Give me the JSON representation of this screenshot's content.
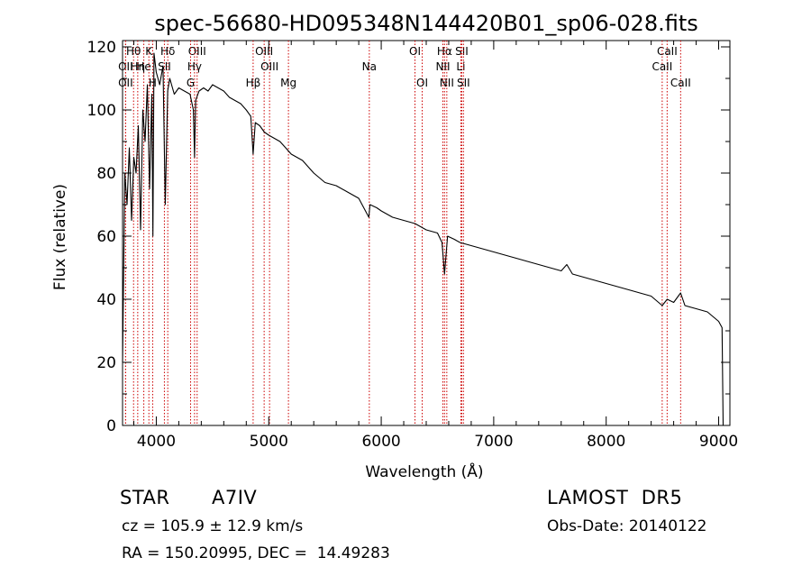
{
  "header": {
    "title": "spec-56680-HD095348N144420B01_sp06-028.fits"
  },
  "info": {
    "object_class": "STAR",
    "subclass": "A7IV",
    "cz": "cz = 105.9 ± 12.9 km/s",
    "coords": "RA = 150.20995, DEC =  14.49283",
    "survey": "LAMOST  DR5",
    "obs_date": "Obs-Date: 20140122"
  },
  "chart_data": {
    "type": "line",
    "title": "spec-56680-HD095348N144420B01_sp06-028.fits",
    "xlabel": "Wavelength (Å)",
    "ylabel": "Flux (relative)",
    "xlim": [
      3700,
      9100
    ],
    "ylim": [
      0,
      122
    ],
    "xticks": [
      4000,
      5000,
      6000,
      7000,
      8000,
      9000
    ],
    "yticks": [
      0,
      20,
      40,
      60,
      80,
      100,
      120
    ],
    "grid": false,
    "line_color": "#000000",
    "marker_color": "#cc0000",
    "series": [
      {
        "x": [
          3700,
          3720,
          3740,
          3760,
          3780,
          3800,
          3820,
          3840,
          3860,
          3880,
          3900,
          3920,
          3940,
          3960,
          3970,
          3980,
          4000,
          4030,
          4060,
          4080,
          4101,
          4120,
          4160,
          4200,
          4250,
          4300,
          4330,
          4340,
          4350,
          4380,
          4420,
          4460,
          4500,
          4550,
          4600,
          4650,
          4700,
          4750,
          4800,
          4840,
          4861,
          4880,
          4920,
          4960,
          5000,
          5050,
          5100,
          5150,
          5200,
          5300,
          5400,
          5500,
          5600,
          5700,
          5800,
          5890,
          5900,
          5960,
          6000,
          6100,
          6200,
          6300,
          6400,
          6500,
          6540,
          6563,
          6590,
          6650,
          6700,
          6800,
          6900,
          7000,
          7100,
          7200,
          7300,
          7400,
          7500,
          7600,
          7650,
          7700,
          7800,
          7900,
          8000,
          8100,
          8200,
          8300,
          8400,
          8498,
          8542,
          8600,
          8662,
          8700,
          8800,
          8900,
          9000,
          9030,
          9040
        ],
        "y": [
          20,
          80,
          70,
          88,
          65,
          85,
          80,
          95,
          62,
          100,
          90,
          108,
          75,
          105,
          60,
          118,
          112,
          108,
          114,
          70,
          106,
          110,
          105,
          107,
          106,
          105,
          100,
          85,
          103,
          106,
          107,
          106,
          108,
          107,
          106,
          104,
          103,
          102,
          100,
          98,
          86,
          96,
          95,
          93,
          92,
          91,
          90,
          88,
          86,
          84,
          80,
          77,
          76,
          74,
          72,
          66,
          70,
          69,
          68,
          66,
          65,
          64,
          62,
          61,
          58,
          48,
          60,
          59,
          58,
          57,
          56,
          55,
          54,
          53,
          52,
          51,
          50,
          49,
          51,
          48,
          47,
          46,
          45,
          44,
          43,
          42,
          41,
          38,
          40,
          39,
          42,
          38,
          37,
          36,
          33,
          31,
          0
        ]
      }
    ],
    "lines": [
      {
        "label": "Hθ",
        "x": 3798,
        "row": 0
      },
      {
        "label": "OII",
        "x": 3727,
        "row": 1
      },
      {
        "label": "OII",
        "x": 3727,
        "row": 2
      },
      {
        "label": "He",
        "x": 3889,
        "row": 1
      },
      {
        "label": "Hη",
        "x": 3835,
        "row": 1
      },
      {
        "label": "K",
        "x": 3934,
        "row": 0
      },
      {
        "label": "H",
        "x": 3968,
        "row": 2
      },
      {
        "label": "Hδ",
        "x": 4102,
        "row": 0
      },
      {
        "label": "SII",
        "x": 4072,
        "row": 1
      },
      {
        "label": "OIII",
        "x": 4363,
        "row": 0
      },
      {
        "label": "Hγ",
        "x": 4340,
        "row": 1
      },
      {
        "label": "G",
        "x": 4305,
        "row": 2
      },
      {
        "label": "OIII",
        "x": 4959,
        "row": 0
      },
      {
        "label": "OIII",
        "x": 5007,
        "row": 1
      },
      {
        "label": "Hβ",
        "x": 4861,
        "row": 2
      },
      {
        "label": "Mg",
        "x": 5175,
        "row": 2
      },
      {
        "label": "Na",
        "x": 5894,
        "row": 1
      },
      {
        "label": "OI",
        "x": 6300,
        "row": 0
      },
      {
        "label": "OI",
        "x": 6364,
        "row": 2
      },
      {
        "label": "Hα",
        "x": 6563,
        "row": 0
      },
      {
        "label": "SII",
        "x": 6716,
        "row": 0
      },
      {
        "label": "NII",
        "x": 6548,
        "row": 1
      },
      {
        "label": "Li",
        "x": 6708,
        "row": 1
      },
      {
        "label": "NII",
        "x": 6583,
        "row": 2
      },
      {
        "label": "SII",
        "x": 6731,
        "row": 2
      },
      {
        "label": "CaII",
        "x": 8542,
        "row": 0
      },
      {
        "label": "CaII",
        "x": 8498,
        "row": 1
      },
      {
        "label": "CaII",
        "x": 8662,
        "row": 2
      }
    ]
  }
}
